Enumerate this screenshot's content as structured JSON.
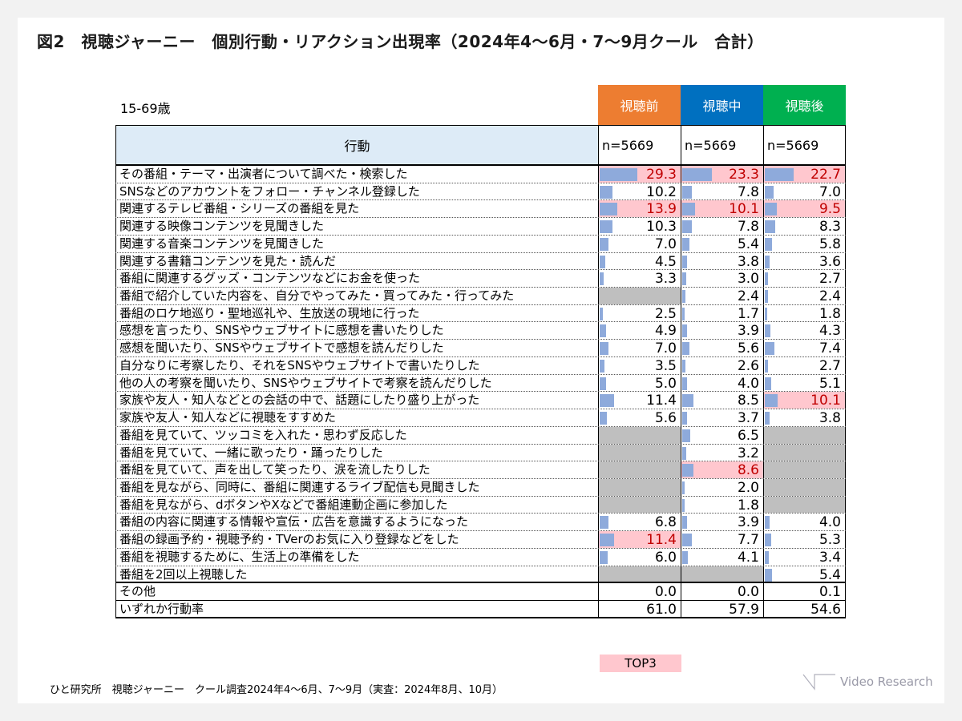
{
  "title": "図2　視聴ジャーニー　個別行動・リアクション出現率（2024年4～6月・7～9月クール　合計）",
  "age_label": "15-69歳",
  "column_header": "行動",
  "columns": [
    {
      "label": "視聴前",
      "color": "#ed7d31",
      "n": "n=5669"
    },
    {
      "label": "視聴中",
      "color": "#0070c0",
      "n": "n=5669"
    },
    {
      "label": "視聴後",
      "color": "#00b050",
      "n": "n=5669"
    }
  ],
  "chart_data": {
    "type": "table",
    "colors": {
      "bar": "#8eaadb",
      "top3_bg": "#ffc7ce",
      "top3_text": "#c00000",
      "na": "#bfbfbf"
    },
    "rows": [
      {
        "label": "その番組・テーマ・出演者について調べた・検索した",
        "values": [
          29.3,
          23.3,
          22.7
        ],
        "top": [
          1,
          1,
          1
        ]
      },
      {
        "label": "SNSなどのアカウントをフォロー・チャンネル登録した",
        "values": [
          10.2,
          7.8,
          7.0
        ],
        "top": [
          0,
          0,
          0
        ]
      },
      {
        "label": "関連するテレビ番組・シリーズの番組を見た",
        "values": [
          13.9,
          10.1,
          9.5
        ],
        "top": [
          1,
          1,
          1
        ]
      },
      {
        "label": "関連する映像コンテンツを見聞きした",
        "values": [
          10.3,
          7.8,
          8.3
        ],
        "top": [
          0,
          0,
          0
        ]
      },
      {
        "label": "関連する音楽コンテンツを見聞きした",
        "values": [
          7.0,
          5.4,
          5.8
        ],
        "top": [
          0,
          0,
          0
        ]
      },
      {
        "label": "関連する書籍コンテンツを見た・読んだ",
        "values": [
          4.5,
          3.8,
          3.6
        ],
        "top": [
          0,
          0,
          0
        ]
      },
      {
        "label": "番組に関連するグッズ・コンテンツなどにお金を使った",
        "values": [
          3.3,
          3.0,
          2.7
        ],
        "top": [
          0,
          0,
          0
        ]
      },
      {
        "label": "番組で紹介していた内容を、自分でやってみた・買ってみた・行ってみた",
        "values": [
          null,
          2.4,
          2.4
        ],
        "top": [
          0,
          0,
          0
        ]
      },
      {
        "label": "番組のロケ地巡り・聖地巡礼や、生放送の現地に行った",
        "values": [
          2.5,
          1.7,
          1.8
        ],
        "top": [
          0,
          0,
          0
        ]
      },
      {
        "label": "感想を言ったり、SNSやウェブサイトに感想を書いたりした",
        "values": [
          4.9,
          3.9,
          4.3
        ],
        "top": [
          0,
          0,
          0
        ]
      },
      {
        "label": "感想を聞いたり、SNSやウェブサイトで感想を読んだりした",
        "values": [
          7.0,
          5.6,
          7.4
        ],
        "top": [
          0,
          0,
          0
        ]
      },
      {
        "label": "自分なりに考察したり、それをSNSやウェブサイトで書いたりした",
        "values": [
          3.5,
          2.6,
          2.7
        ],
        "top": [
          0,
          0,
          0
        ]
      },
      {
        "label": "他の人の考察を聞いたり、SNSやウェブサイトで考察を読んだりした",
        "values": [
          5.0,
          4.0,
          5.1
        ],
        "top": [
          0,
          0,
          0
        ]
      },
      {
        "label": "家族や友人・知人などとの会話の中で、話題にしたり盛り上がった",
        "values": [
          11.4,
          8.5,
          10.1
        ],
        "top": [
          0,
          0,
          1
        ]
      },
      {
        "label": "家族や友人・知人などに視聴をすすめた",
        "values": [
          5.6,
          3.7,
          3.8
        ],
        "top": [
          0,
          0,
          0
        ]
      },
      {
        "label": "番組を見ていて、ツッコミを入れた・思わず反応した",
        "values": [
          null,
          6.5,
          null
        ],
        "top": [
          0,
          0,
          0
        ]
      },
      {
        "label": "番組を見ていて、一緒に歌ったり・踊ったりした",
        "values": [
          null,
          3.2,
          null
        ],
        "top": [
          0,
          0,
          0
        ]
      },
      {
        "label": "番組を見ていて、声を出して笑ったり、涙を流したりした",
        "values": [
          null,
          8.6,
          null
        ],
        "top": [
          0,
          1,
          0
        ]
      },
      {
        "label": "番組を見ながら、同時に、番組に関連するライブ配信も見聞きした",
        "values": [
          null,
          2.0,
          null
        ],
        "top": [
          0,
          0,
          0
        ]
      },
      {
        "label": "番組を見ながら、dボタンやXなどで番組連動企画に参加した",
        "values": [
          null,
          1.8,
          null
        ],
        "top": [
          0,
          0,
          0
        ]
      },
      {
        "label": "番組の内容に関連する情報や宣伝・広告を意識するようになった",
        "values": [
          6.8,
          3.9,
          4.0
        ],
        "top": [
          0,
          0,
          0
        ]
      },
      {
        "label": "番組の録画予約・視聴予約・TVerのお気に入り登録などをした",
        "values": [
          11.4,
          7.7,
          5.3
        ],
        "top": [
          1,
          0,
          0
        ]
      },
      {
        "label": "番組を視聴するために、生活上の準備をした",
        "values": [
          6.0,
          4.1,
          3.4
        ],
        "top": [
          0,
          0,
          0
        ]
      },
      {
        "label": "番組を2回以上視聴した",
        "values": [
          null,
          null,
          5.4
        ],
        "top": [
          0,
          0,
          0
        ]
      }
    ],
    "summary_rows": [
      {
        "label": "その他",
        "values": [
          "0.0",
          "0.0",
          "0.1"
        ]
      },
      {
        "label": "いずれか行動率",
        "values": [
          "61.0",
          "57.9",
          "54.6"
        ]
      }
    ]
  },
  "legend": "TOP3",
  "source": "ひと研究所　視聴ジャーニー　クール調査2024年4～6月、7～9月（実査：2024年8月、10月）",
  "logo": "Video Research"
}
